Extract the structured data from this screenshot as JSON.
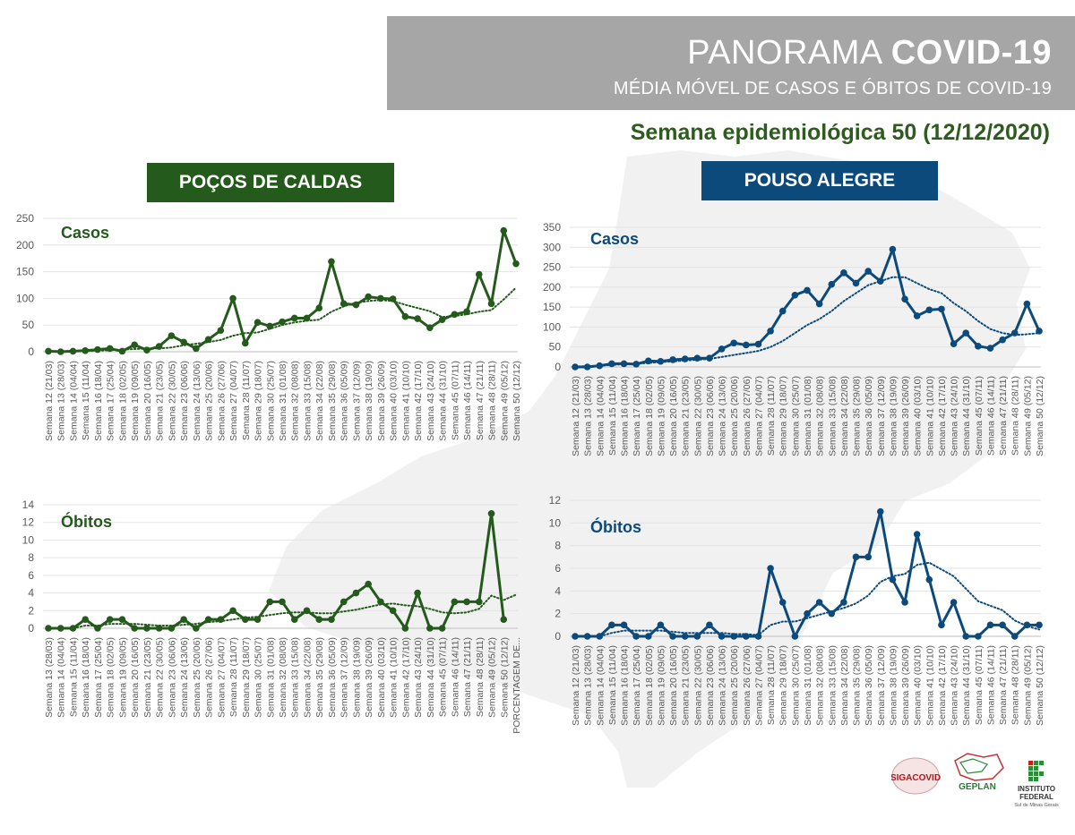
{
  "header": {
    "title_light": "PANORAMA",
    "title_bold": "COVID-19",
    "subtitle": "MÉDIA MÓVEL DE CASOS E ÓBITOS DE COVID-19",
    "week": "Semana epidemiológica 50 (12/12/2020)"
  },
  "cities": {
    "left": "POÇOS DE CALDAS",
    "right": "POUSO ALEGRE"
  },
  "colors": {
    "green": "#245a1c",
    "blue": "#0d4a7c",
    "banner": "#a6a6a6"
  },
  "logos": {
    "sigacovid": "SIGACOVID",
    "geplan": "GEPLAN",
    "if_line1": "INSTITUTO",
    "if_line2": "FEDERAL",
    "if_line3": "Sul de Minas Gerais"
  },
  "chart_data": [
    {
      "type": "line",
      "title": "Casos",
      "city": "POÇOS DE CALDAS",
      "color": "#245a1c",
      "ylim": [
        0,
        250
      ],
      "yticks": [
        0,
        50,
        100,
        150,
        200,
        250
      ],
      "categories": [
        "Semana 12 (21/03)",
        "Semana 13 (28/03)",
        "Semana 14 (04/04)",
        "Semana 15 (11/04)",
        "Semana 16 (18/04)",
        "Semana 17 (25/04)",
        "Semana 18 (02/05)",
        "Semana 19 (09/05)",
        "Semana 20 (16/05)",
        "Semana 21 (23/05)",
        "Semana 22 (30/05)",
        "Semana 23 (06/06)",
        "Semana 24 (13/06)",
        "Semana 25 (20/06)",
        "Semana 26 (27/06)",
        "Semana 27 (04/07)",
        "Semana 28 (11/07)",
        "Semana 29 (18/07)",
        "Semana 30 (25/07)",
        "Semana 31 (01/08)",
        "Semana 32 (08/08)",
        "Semana 33 (15/08)",
        "Semana 34 (22/08)",
        "Semana 35 (29/08)",
        "Semana 36 (05/09)",
        "Semana 37 (12/09)",
        "Semana 38 (19/09)",
        "Semana 39 (26/09)",
        "Semana 40 (03/10)",
        "Semana 41 (10/10)",
        "Semana 42 (17/10)",
        "Semana 43 (24/10)",
        "Semana 44 (31/10)",
        "Semana 45 (07/11)",
        "Semana 46 (14/11)",
        "Semana 47 (21/11)",
        "Semana 48 (28/11)",
        "Semana 49 (05/12)",
        "Semana 50 (12/12)"
      ],
      "values": [
        1,
        0,
        1,
        2,
        4,
        6,
        1,
        13,
        3,
        10,
        30,
        18,
        6,
        23,
        40,
        100,
        16,
        55,
        48,
        56,
        63,
        63,
        82,
        169,
        90,
        88,
        103,
        100,
        99,
        66,
        62,
        45,
        60,
        70,
        75,
        145,
        90,
        227,
        165
      ],
      "moving_avg": [
        1,
        1,
        1,
        1,
        2,
        3,
        4,
        5,
        6,
        6,
        8,
        12,
        15,
        18,
        22,
        30,
        35,
        36,
        43,
        50,
        55,
        58,
        60,
        75,
        85,
        92,
        95,
        97,
        95,
        88,
        82,
        76,
        65,
        67,
        70,
        75,
        78,
        98,
        120
      ]
    },
    {
      "type": "line",
      "title": "Casos",
      "city": "POUSO ALEGRE",
      "color": "#0d4a7c",
      "ylim": [
        0,
        350
      ],
      "yticks": [
        0,
        50,
        100,
        150,
        200,
        250,
        300,
        350
      ],
      "categories": [
        "Semana 12 (21/03)",
        "Semana 13 (28/03)",
        "Semana 14 (04/04)",
        "Semana 15 (11/04)",
        "Semana 16 (18/04)",
        "Semana 17 (25/04)",
        "Semana 18 (02/05)",
        "Semana 19 (09/05)",
        "Semana 20 (16/05)",
        "Semana 21 (23/05)",
        "Semana 22 (30/05)",
        "Semana 23 (06/06)",
        "Semana 24 (13/06)",
        "Semana 25 (20/06)",
        "Semana 26 (27/06)",
        "Semana 27 (04/07)",
        "Semana 28 (11/07)",
        "Semana 29 (18/07)",
        "Semana 30 (25/07)",
        "Semana 31 (01/08)",
        "Semana 32 (08/08)",
        "Semana 33 (15/08)",
        "Semana 34 (22/08)",
        "Semana 35 (29/08)",
        "Semana 36 (05/09)",
        "Semana 37 (12/09)",
        "Semana 38 (19/09)",
        "Semana 39 (26/09)",
        "Semana 40 (03/10)",
        "Semana 41 (10/10)",
        "Semana 42 (17/10)",
        "Semana 43 (24/10)",
        "Semana 44 (31/10)",
        "Semana 45 (07/11)",
        "Semana 46 (14/11)",
        "Semana 47 (21/11)",
        "Semana 48 (28/11)",
        "Semana 49 (05/12)",
        "Semana 50 (12/12)"
      ],
      "values": [
        0,
        0,
        3,
        8,
        8,
        7,
        15,
        14,
        18,
        20,
        22,
        22,
        45,
        60,
        55,
        57,
        90,
        140,
        180,
        192,
        158,
        207,
        236,
        210,
        240,
        215,
        295,
        170,
        128,
        143,
        145,
        58,
        85,
        52,
        47,
        68,
        85,
        158,
        90
      ],
      "moving_avg": [
        1,
        2,
        3,
        5,
        7,
        8,
        10,
        12,
        14,
        16,
        18,
        20,
        25,
        30,
        35,
        40,
        50,
        65,
        85,
        105,
        120,
        140,
        165,
        185,
        205,
        215,
        225,
        225,
        210,
        195,
        185,
        160,
        140,
        115,
        95,
        85,
        80,
        82,
        85
      ]
    },
    {
      "type": "line",
      "title": "Óbitos",
      "city": "POÇOS DE CALDAS",
      "color": "#245a1c",
      "ylim": [
        0,
        14
      ],
      "yticks": [
        0,
        2,
        4,
        6,
        8,
        10,
        12,
        14
      ],
      "categories": [
        "Semana 13 (28/03)",
        "Semana 14 (04/04)",
        "Semana 15 (11/04)",
        "Semana 16 (18/04)",
        "Semana 17 (25/04)",
        "Semana 18 (02/05)",
        "Semana 19 (09/05)",
        "Semana 20 (16/05)",
        "Semana 21 (23/05)",
        "Semana 22 (30/05)",
        "Semana 23 (06/06)",
        "Semana 24 (13/06)",
        "Semana 25 (20/06)",
        "Semana 26 (27/06)",
        "Semana 27 (04/07)",
        "Semana 28 (11/07)",
        "Semana 29 (18/07)",
        "Semana 30 (25/07)",
        "Semana 31 (01/08)",
        "Semana 32 (08/08)",
        "Semana 33 (15/08)",
        "Semana 34 (22/08)",
        "Semana 35 (29/08)",
        "Semana 36 (05/09)",
        "Semana 37 (12/09)",
        "Semana 38 (19/09)",
        "Semana 39 (26/09)",
        "Semana 40 (03/10)",
        "Semana 41 (10/10)",
        "Semana 42 (17/10)",
        "Semana 43 (24/10)",
        "Semana 44 (31/10)",
        "Semana 45 (07/11)",
        "Semana 46 (14/11)",
        "Semana 47 (21/11)",
        "Semana 48 (28/11)",
        "Semana 49 (05/12)",
        "Semana 50 (12/12)",
        "PORCENTAGEM DE..."
      ],
      "values": [
        0,
        0,
        0,
        1,
        0,
        1,
        1,
        0,
        0,
        0,
        0,
        1,
        0,
        1,
        1,
        2,
        1,
        1,
        3,
        3,
        1,
        2,
        1,
        1,
        3,
        4,
        5,
        3,
        2,
        0,
        4,
        0,
        0,
        3,
        3,
        3,
        13,
        1,
        null
      ],
      "moving_avg": [
        0,
        0,
        0,
        0.3,
        0.3,
        0.5,
        0.5,
        0.5,
        0.4,
        0.3,
        0.3,
        0.4,
        0.5,
        0.7,
        0.8,
        1.0,
        1.2,
        1.3,
        1.5,
        1.7,
        1.8,
        1.8,
        1.7,
        1.7,
        1.9,
        2.1,
        2.4,
        2.7,
        2.8,
        2.6,
        2.5,
        2.2,
        1.8,
        1.7,
        1.8,
        2.2,
        3.7,
        3.2,
        3.8
      ]
    },
    {
      "type": "line",
      "title": "Óbitos",
      "city": "POUSO ALEGRE",
      "color": "#0d4a7c",
      "ylim": [
        0,
        12
      ],
      "yticks": [
        0,
        2,
        4,
        6,
        8,
        10,
        12
      ],
      "categories": [
        "Semana 12 (21/03)",
        "Semana 13 (28/03)",
        "Semana 14 (04/04)",
        "Semana 15 (11/04)",
        "Semana 16 (18/04)",
        "Semana 17 (25/04)",
        "Semana 18 (02/05)",
        "Semana 19 (09/05)",
        "Semana 20 (16/05)",
        "Semana 21 (23/05)",
        "Semana 22 (30/05)",
        "Semana 23 (06/06)",
        "Semana 24 (13/06)",
        "Semana 25 (20/06)",
        "Semana 26 (27/06)",
        "Semana 27 (04/07)",
        "Semana 28 (11/07)",
        "Semana 29 (18/07)",
        "Semana 30 (25/07)",
        "Semana 31 (01/08)",
        "Semana 32 (08/08)",
        "Semana 33 (15/08)",
        "Semana 34 (22/08)",
        "Semana 35 (29/08)",
        "Semana 36 (05/09)",
        "Semana 37 (12/09)",
        "Semana 38 (19/09)",
        "Semana 39 (26/09)",
        "Semana 40 (03/10)",
        "Semana 41 (10/10)",
        "Semana 42 (17/10)",
        "Semana 43 (24/10)",
        "Semana 44 (31/10)",
        "Semana 45 (07/11)",
        "Semana 46 (14/11)",
        "Semana 47 (21/11)",
        "Semana 48 (28/11)",
        "Semana 49 (05/12)",
        "Semana 50 (12/12)"
      ],
      "values": [
        0,
        0,
        0,
        1,
        1,
        0,
        0,
        1,
        0,
        0,
        0,
        1,
        0,
        0,
        0,
        0,
        6,
        3,
        0,
        2,
        3,
        2,
        3,
        7,
        7,
        11,
        5,
        3,
        9,
        5,
        1,
        3,
        0,
        0,
        1,
        1,
        0,
        1,
        1
      ],
      "moving_avg": [
        0,
        0,
        0,
        0.3,
        0.5,
        0.5,
        0.5,
        0.5,
        0.4,
        0.3,
        0.3,
        0.3,
        0.3,
        0.2,
        0.2,
        0.1,
        1.0,
        1.3,
        1.3,
        1.6,
        1.9,
        2.2,
        2.5,
        2.9,
        3.6,
        4.8,
        5.3,
        5.5,
        6.3,
        6.5,
        5.9,
        5.3,
        4.2,
        3.1,
        2.7,
        2.3,
        1.4,
        0.9,
        0.6
      ]
    }
  ]
}
